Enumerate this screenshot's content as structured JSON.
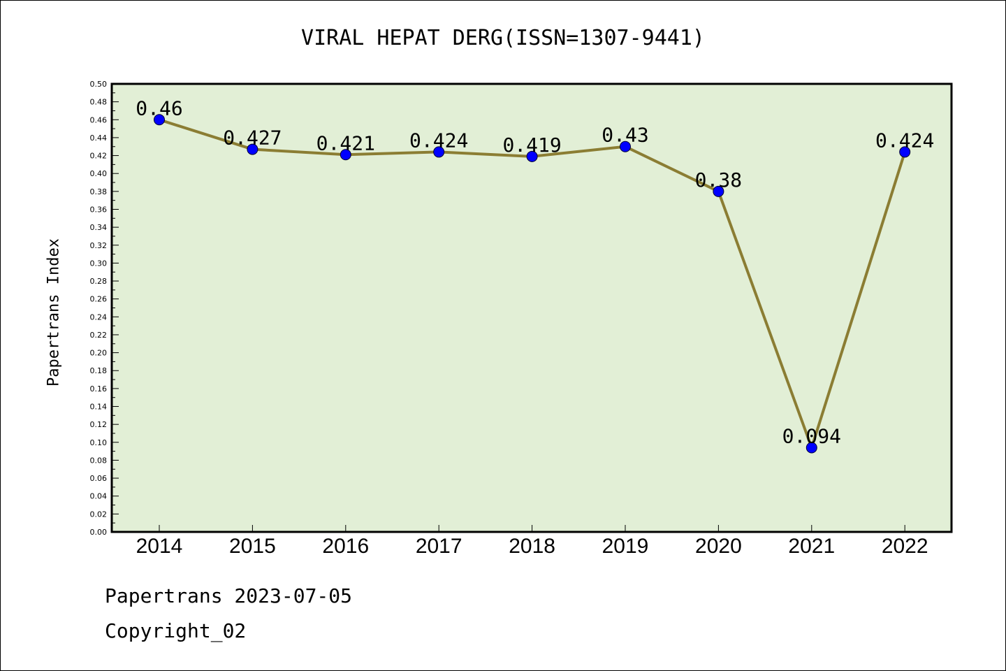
{
  "chart_data": {
    "type": "line",
    "title": "VIRAL HEPAT DERG(ISSN=1307-9441)",
    "xlabel": "",
    "ylabel": "Papertrans Index",
    "categories": [
      "2014",
      "2015",
      "2016",
      "2017",
      "2018",
      "2019",
      "2020",
      "2021",
      "2022"
    ],
    "series": [
      {
        "values": [
          0.46,
          0.427,
          0.421,
          0.424,
          0.419,
          0.43,
          0.38,
          0.094,
          0.424
        ],
        "data_labels": [
          "0.46",
          "0.427",
          "0.421",
          "0.424",
          "0.419",
          "0.43",
          "0.38",
          "0.094",
          "0.424"
        ]
      }
    ],
    "ylim": [
      0,
      0.5
    ],
    "y_ticks": [
      "0.00",
      "0.02",
      "0.04",
      "0.06",
      "0.08",
      "0.10",
      "0.12",
      "0.14",
      "0.16",
      "0.18",
      "0.20",
      "0.22",
      "0.24",
      "0.26",
      "0.28",
      "0.30",
      "0.32",
      "0.34",
      "0.36",
      "0.38",
      "0.40",
      "0.42",
      "0.44",
      "0.46",
      "0.48",
      "0.50"
    ],
    "grid": false,
    "legend": "none",
    "colors": {
      "plot_background": "#e2efd6",
      "line": "#8b7d33",
      "marker": "#0000ff"
    }
  },
  "footer": {
    "date_line": "Papertrans 2023-07-05",
    "copyright_line": "Copyright_02"
  }
}
